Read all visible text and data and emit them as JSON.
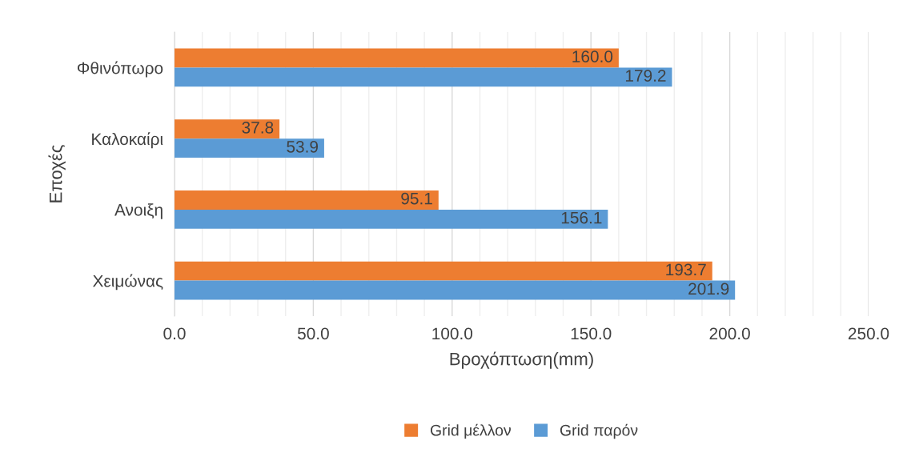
{
  "chart_data": {
    "type": "bar",
    "orientation": "horizontal",
    "xlabel": "Βροχόπτωση(mm)",
    "ylabel": "Εποχές",
    "categories": [
      "Φθινόπωρο",
      "Καλοκαίρι",
      "Ανοιξη",
      "Χειμώνας"
    ],
    "series": [
      {
        "name": "Grid μέλλον",
        "color": "#ed7d31",
        "values": [
          160.0,
          37.8,
          95.1,
          193.7
        ],
        "value_labels": [
          "160.0",
          "37.8",
          "95.1",
          "193.7"
        ]
      },
      {
        "name": "Grid παρόν",
        "color": "#5b9bd5",
        "values": [
          179.2,
          53.9,
          156.1,
          201.9
        ],
        "value_labels": [
          "179.2",
          "53.9",
          "156.1",
          "201.9"
        ]
      }
    ],
    "xlim": [
      0,
      250
    ],
    "xticks": [
      {
        "value": 0,
        "label": "0.0"
      },
      {
        "value": 10,
        "label": null
      },
      {
        "value": 20,
        "label": null
      },
      {
        "value": 30,
        "label": null
      },
      {
        "value": 40,
        "label": null
      },
      {
        "value": 50,
        "label": "50.0"
      },
      {
        "value": 60,
        "label": null
      },
      {
        "value": 70,
        "label": null
      },
      {
        "value": 80,
        "label": null
      },
      {
        "value": 90,
        "label": null
      },
      {
        "value": 100,
        "label": "100.0"
      },
      {
        "value": 110,
        "label": null
      },
      {
        "value": 120,
        "label": null
      },
      {
        "value": 130,
        "label": null
      },
      {
        "value": 140,
        "label": null
      },
      {
        "value": 150,
        "label": "150.0"
      },
      {
        "value": 160,
        "label": null
      },
      {
        "value": 170,
        "label": null
      },
      {
        "value": 180,
        "label": null
      },
      {
        "value": 190,
        "label": null
      },
      {
        "value": 200,
        "label": "200.0"
      },
      {
        "value": 210,
        "label": null
      },
      {
        "value": 220,
        "label": null
      },
      {
        "value": 230,
        "label": null
      },
      {
        "value": 240,
        "label": null
      },
      {
        "value": 250,
        "label": "250.0"
      }
    ],
    "grid": "x",
    "legend": "bottom"
  }
}
